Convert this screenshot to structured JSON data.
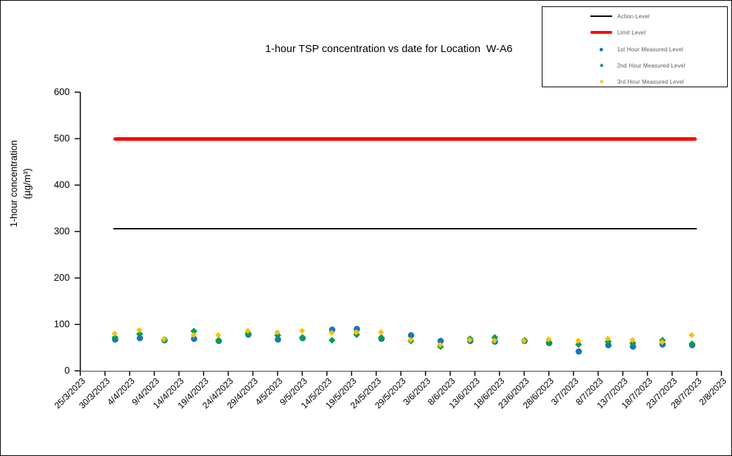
{
  "chart_data": {
    "type": "scatter",
    "title": "1-hour TSP concentration vs date for Location  W-A6",
    "xlabel": "",
    "ylabel": "1-hour concentration (µg/m³)",
    "ylabel_line1": "1-hour concentration",
    "ylabel_line2": "(µg/m³)",
    "ylim": [
      0,
      600
    ],
    "yticks": [
      0,
      100,
      200,
      300,
      400,
      500,
      600
    ],
    "x_tick_labels": [
      "25/3/2023",
      "30/3/2023",
      "4/4/2023",
      "9/4/2023",
      "14/4/2023",
      "19/4/2023",
      "24/4/2023",
      "29/4/2023",
      "4/5/2023",
      "9/5/2023",
      "14/5/2023",
      "19/5/2023",
      "24/5/2023",
      "29/5/2023",
      "3/6/2023",
      "8/6/2023",
      "13/6/2023",
      "18/6/2023",
      "23/6/2023",
      "28/6/2023",
      "3/7/2023",
      "8/7/2023",
      "13/7/2023",
      "18/7/2023",
      "23/7/2023",
      "28/7/2023",
      "2/8/2023"
    ],
    "grid": "off",
    "legend_position": "top-right",
    "reference_lines": [
      {
        "name": "Action Level",
        "value": 306,
        "color": "#000000",
        "style": "thin"
      },
      {
        "name": "Limit Level",
        "value": 500,
        "color": "#FF0000",
        "style": "thick"
      }
    ],
    "x": [
      "1/4/2023",
      "6/4/2023",
      "11/4/2023",
      "17/4/2023",
      "22/4/2023",
      "28/4/2023",
      "4/5/2023",
      "9/5/2023",
      "15/5/2023",
      "20/5/2023",
      "25/5/2023",
      "31/5/2023",
      "6/6/2023",
      "12/6/2023",
      "17/6/2023",
      "23/6/2023",
      "28/6/2023",
      "4/7/2023",
      "10/7/2023",
      "15/7/2023",
      "21/7/2023",
      "27/7/2023"
    ],
    "series": [
      {
        "name": "1st Hour Measured Level",
        "marker": "circle",
        "color": "#1B75BC",
        "values": [
          67,
          71,
          66,
          69,
          65,
          78,
          67,
          71,
          88,
          90,
          69,
          76,
          64,
          65,
          63,
          64,
          60,
          42,
          56,
          52,
          57,
          56
        ]
      },
      {
        "name": "2nd Hour Measured Level",
        "marker": "diamond",
        "color": "#00A14B",
        "values": [
          73,
          80,
          68,
          86,
          66,
          82,
          77,
          72,
          67,
          79,
          73,
          65,
          53,
          70,
          72,
          67,
          62,
          57,
          63,
          60,
          67,
          58
        ]
      },
      {
        "name": "3rd Hour Measured Level",
        "marker": "diamond",
        "color": "#FFC000",
        "values": [
          80,
          88,
          68,
          77,
          77,
          87,
          83,
          86,
          82,
          84,
          84,
          67,
          56,
          67,
          65,
          66,
          68,
          65,
          70,
          67,
          62,
          77
        ]
      }
    ]
  }
}
